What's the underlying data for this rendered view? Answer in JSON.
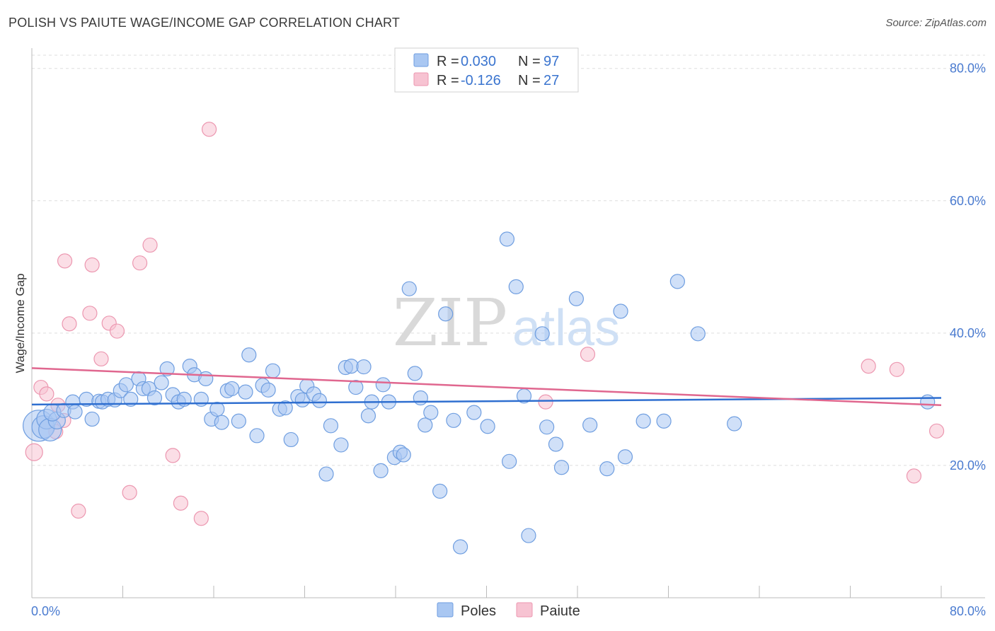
{
  "title": "POLISH VS PAIUTE WAGE/INCOME GAP CORRELATION CHART",
  "source": "Source: ZipAtlas.com",
  "watermark": {
    "zip": "ZIP",
    "atlas": "atlas"
  },
  "colors": {
    "poles_fill": "#a9c7f2",
    "poles_stroke": "#6f9ee0",
    "poles_line": "#2f6fd0",
    "paiute_fill": "#f7c3d2",
    "paiute_stroke": "#ec97b0",
    "paiute_line": "#e0678f",
    "tick_text": "#4a7bd0",
    "grid": "#dddddd"
  },
  "legend": {
    "rows": [
      {
        "series": "Poles",
        "r_label": "R =",
        "r_value": "0.030",
        "n_label": "N =",
        "n_value": "97"
      },
      {
        "series": "Paiute",
        "r_label": "R =",
        "r_value": "-0.126",
        "n_label": "N =",
        "n_value": "27"
      }
    ]
  },
  "bottom_legend": [
    "Poles",
    "Paiute"
  ],
  "chart_data": {
    "type": "scatter",
    "ylabel": "Wage/Income Gap",
    "xlim": [
      0,
      80
    ],
    "ylim": [
      0,
      82
    ],
    "x_tick_labels": [
      "0.0%",
      "80.0%"
    ],
    "y_ticks": [
      20,
      40,
      60,
      80
    ],
    "y_tick_labels": [
      "20.0%",
      "40.0%",
      "60.0%",
      "80.0%"
    ],
    "grid": true,
    "legend_position": "top-center",
    "series": [
      {
        "name": "Poles",
        "trend": {
          "x": [
            0,
            80
          ],
          "y": [
            29.2,
            30.2
          ]
        },
        "points": [
          [
            0.6,
            26,
            22
          ],
          [
            1,
            25.8,
            16
          ],
          [
            1.3,
            27,
            14
          ],
          [
            1.6,
            25.4,
            16
          ],
          [
            2.2,
            26.8,
            12
          ],
          [
            1.8,
            28,
            12
          ],
          [
            2.8,
            28.3,
            10
          ],
          [
            3.6,
            29.6,
            10
          ],
          [
            3.8,
            28.1,
            10
          ],
          [
            5.3,
            27,
            10
          ],
          [
            4.8,
            30,
            10
          ],
          [
            5.9,
            29.7,
            10
          ],
          [
            6.2,
            29.6,
            10
          ],
          [
            6.7,
            30,
            10
          ],
          [
            7.3,
            29.9,
            10
          ],
          [
            7.8,
            31.3,
            10
          ],
          [
            8.3,
            32.2,
            10
          ],
          [
            8.7,
            30,
            10
          ],
          [
            9.4,
            33.1,
            10
          ],
          [
            9.8,
            31.6,
            10
          ],
          [
            10.3,
            31.6,
            10
          ],
          [
            10.8,
            30.2,
            10
          ],
          [
            11.4,
            32.5,
            10
          ],
          [
            11.9,
            34.6,
            10
          ],
          [
            12.4,
            30.7,
            10
          ],
          [
            12.9,
            29.6,
            10
          ],
          [
            13.4,
            30,
            10
          ],
          [
            13.9,
            35,
            10
          ],
          [
            14.3,
            33.7,
            10
          ],
          [
            14.9,
            30,
            10
          ],
          [
            15.3,
            33.1,
            10
          ],
          [
            15.8,
            27,
            10
          ],
          [
            16.3,
            28.5,
            10
          ],
          [
            16.7,
            26.5,
            10
          ],
          [
            17.2,
            31.3,
            10
          ],
          [
            17.6,
            31.6,
            10
          ],
          [
            18.2,
            26.7,
            10
          ],
          [
            18.8,
            31.1,
            10
          ],
          [
            19.1,
            36.7,
            10
          ],
          [
            19.8,
            24.5,
            10
          ],
          [
            20.3,
            32.1,
            10
          ],
          [
            20.8,
            31.4,
            10
          ],
          [
            21.2,
            34.3,
            10
          ],
          [
            21.8,
            28.5,
            10
          ],
          [
            22.3,
            28.7,
            10
          ],
          [
            22.8,
            23.9,
            10
          ],
          [
            23.4,
            30.4,
            10
          ],
          [
            23.8,
            29.9,
            10
          ],
          [
            24.2,
            32,
            10
          ],
          [
            24.8,
            30.8,
            10
          ],
          [
            25.3,
            29.8,
            10
          ],
          [
            25.9,
            18.7,
            10
          ],
          [
            26.3,
            26,
            10
          ],
          [
            27.2,
            23.1,
            10
          ],
          [
            27.6,
            34.8,
            10
          ],
          [
            28.1,
            35,
            10
          ],
          [
            28.5,
            31.8,
            10
          ],
          [
            29.2,
            34.9,
            10
          ],
          [
            29.6,
            27.5,
            10
          ],
          [
            29.9,
            29.6,
            10
          ],
          [
            30.7,
            19.2,
            10
          ],
          [
            30.9,
            32.2,
            10
          ],
          [
            31.4,
            29.6,
            10
          ],
          [
            31.9,
            21.2,
            10
          ],
          [
            32.4,
            22,
            10
          ],
          [
            32.7,
            21.6,
            10
          ],
          [
            33.2,
            46.7,
            10
          ],
          [
            33.7,
            33.9,
            10
          ],
          [
            34.2,
            30.2,
            10
          ],
          [
            34.6,
            26.1,
            10
          ],
          [
            35.1,
            28,
            10
          ],
          [
            35.9,
            16.1,
            10
          ],
          [
            36.4,
            42.9,
            10
          ],
          [
            37.1,
            26.8,
            10
          ],
          [
            37.7,
            7.7,
            10
          ],
          [
            38.9,
            28,
            10
          ],
          [
            40.1,
            25.9,
            10
          ],
          [
            41.8,
            54.2,
            10
          ],
          [
            42,
            20.6,
            10
          ],
          [
            42.6,
            47,
            10
          ],
          [
            43.3,
            30.5,
            10
          ],
          [
            43.7,
            9.4,
            10
          ],
          [
            44.9,
            39.9,
            10
          ],
          [
            45.3,
            25.8,
            10
          ],
          [
            46.1,
            23.2,
            10
          ],
          [
            46.6,
            19.7,
            10
          ],
          [
            47.9,
            45.2,
            10
          ],
          [
            49.1,
            26.1,
            10
          ],
          [
            50.6,
            19.5,
            10
          ],
          [
            51.8,
            43.3,
            10
          ],
          [
            52.2,
            21.3,
            10
          ],
          [
            53.8,
            26.7,
            10
          ],
          [
            55.6,
            26.7,
            10
          ],
          [
            56.8,
            47.8,
            10
          ],
          [
            58.6,
            39.9,
            10
          ],
          [
            61.8,
            26.3,
            10
          ],
          [
            78.8,
            29.6,
            10
          ]
        ]
      },
      {
        "name": "Paiute",
        "trend": {
          "x": [
            0,
            80
          ],
          "y": [
            34.7,
            29.1
          ]
        },
        "points": [
          [
            0.2,
            22,
            12
          ],
          [
            0.8,
            31.8,
            10
          ],
          [
            1.3,
            30.8,
            10
          ],
          [
            2.1,
            25.1,
            10
          ],
          [
            2.3,
            29.1,
            10
          ],
          [
            2.8,
            26.8,
            10
          ],
          [
            2.9,
            50.9,
            10
          ],
          [
            3.3,
            41.4,
            10
          ],
          [
            4.1,
            13.1,
            10
          ],
          [
            5.1,
            43,
            10
          ],
          [
            5.3,
            50.3,
            10
          ],
          [
            6.1,
            36.1,
            10
          ],
          [
            6.8,
            41.5,
            10
          ],
          [
            7.5,
            40.3,
            10
          ],
          [
            8.6,
            15.9,
            10
          ],
          [
            9.5,
            50.6,
            10
          ],
          [
            10.4,
            53.3,
            10
          ],
          [
            12.4,
            21.5,
            10
          ],
          [
            13.1,
            14.3,
            10
          ],
          [
            14.9,
            12,
            10
          ],
          [
            15.6,
            70.8,
            10
          ],
          [
            45.2,
            29.6,
            10
          ],
          [
            48.9,
            36.8,
            10
          ],
          [
            73.6,
            35,
            10
          ],
          [
            76.1,
            34.5,
            10
          ],
          [
            77.6,
            18.4,
            10
          ],
          [
            79.6,
            25.2,
            10
          ]
        ]
      }
    ]
  }
}
